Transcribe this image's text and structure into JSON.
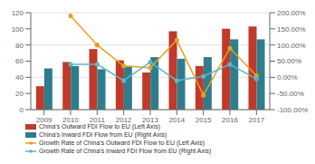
{
  "chart_data": {
    "type": "bar",
    "categories": [
      "2009",
      "2010",
      "2011",
      "2012",
      "2013",
      "2014",
      "2015",
      "2016",
      "2017"
    ],
    "series": [
      {
        "name": "China's Outward FDI Flow to EU (Left Axis)",
        "type": "bar",
        "color": "#c0392b",
        "values": [
          29,
          59,
          75,
          61,
          46,
          97,
          54,
          100,
          103
        ]
      },
      {
        "name": "China's Inward FDI Flow from EU (Right Axis)",
        "type": "bar",
        "color": "#2e7d8c",
        "values": [
          51,
          54,
          50,
          53,
          65,
          63,
          65,
          87,
          87
        ]
      },
      {
        "name": "Growth Rate of China's Outward FDI Flow to EU (Left Axis)",
        "type": "line",
        "axis": "y2",
        "marker": "circle",
        "color": "#e8a020",
        "values": [
          null,
          190,
          100,
          35,
          30,
          115,
          -55,
          90,
          5
        ]
      },
      {
        "name": "Growth Rate of China's Inward FDI Flow from EU (Right Axis)",
        "type": "line",
        "axis": "y2",
        "marker": "circle",
        "color": "#5ab8c8",
        "values": [
          null,
          40,
          40,
          -10,
          47,
          -10,
          3,
          40,
          -5
        ]
      }
    ],
    "ylim": [
      0,
      120
    ],
    "yticks": [
      0,
      20,
      40,
      60,
      80,
      100,
      120
    ],
    "y2lim": [
      -100,
      200
    ],
    "y2ticks": [
      {
        "value": -100,
        "label": "-100.00%"
      },
      {
        "value": -50,
        "label": "-50.00%"
      },
      {
        "value": 0,
        "label": "0.00%"
      },
      {
        "value": 50,
        "label": "50.00%"
      },
      {
        "value": 100,
        "label": "100.00%"
      },
      {
        "value": 150,
        "label": "150.00%"
      },
      {
        "value": 200,
        "label": "200.00%"
      }
    ],
    "grid": true,
    "legend": "bottom"
  }
}
